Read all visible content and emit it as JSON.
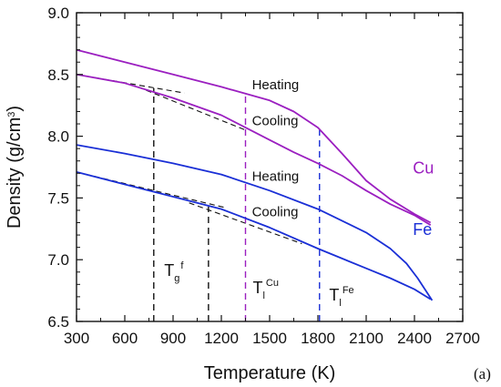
{
  "chart_data": {
    "type": "line",
    "title": "",
    "xlabel": "Temperature (K)",
    "ylabel_main": "Density (g/cm",
    "ylabel_sup": "3",
    "ylabel_close": ")",
    "xlim": [
      300,
      2700
    ],
    "ylim": [
      6.5,
      9.0
    ],
    "x_ticks": [
      300,
      600,
      900,
      1200,
      1500,
      1800,
      2100,
      2400,
      2700
    ],
    "y_ticks": [
      6.5,
      7.0,
      7.5,
      8.0,
      8.5,
      9.0
    ],
    "x_tick_labels": [
      "300",
      "600",
      "900",
      "1200",
      "1500",
      "1800",
      "2100",
      "2400",
      "2700"
    ],
    "y_tick_labels": [
      "6.5",
      "7.0",
      "7.5",
      "8.0",
      "8.5",
      "9.0"
    ],
    "grid": false,
    "colors": {
      "cu": "#9b1fc0",
      "fe": "#1a2fd6",
      "guide": "#111111"
    },
    "series": [
      {
        "key": "cu_heating",
        "color": "#9b1fc0",
        "x": [
          300,
          600,
          900,
          1200,
          1500,
          1650,
          1800,
          1950,
          2100,
          2250,
          2400,
          2500
        ],
        "y": [
          8.7,
          8.6,
          8.5,
          8.4,
          8.29,
          8.2,
          8.07,
          7.86,
          7.64,
          7.49,
          7.37,
          7.3
        ]
      },
      {
        "key": "cu_cooling",
        "color": "#9b1fc0",
        "x": [
          300,
          600,
          900,
          1200,
          1350,
          1500,
          1650,
          1800,
          1950,
          2100,
          2250,
          2400,
          2500
        ],
        "y": [
          8.5,
          8.43,
          8.31,
          8.17,
          8.07,
          7.97,
          7.87,
          7.78,
          7.68,
          7.56,
          7.45,
          7.36,
          7.28
        ]
      },
      {
        "key": "fe_heating",
        "color": "#1a2fd6",
        "x": [
          300,
          600,
          900,
          1200,
          1500,
          1800,
          2100,
          2250,
          2350,
          2420,
          2470,
          2510
        ],
        "y": [
          7.93,
          7.86,
          7.78,
          7.69,
          7.56,
          7.41,
          7.22,
          7.09,
          6.97,
          6.85,
          6.75,
          6.67
        ]
      },
      {
        "key": "fe_cooling",
        "color": "#1a2fd6",
        "x": [
          300,
          600,
          900,
          1200,
          1500,
          1800,
          2100,
          2250,
          2400,
          2500
        ],
        "y": [
          7.71,
          7.61,
          7.51,
          7.41,
          7.26,
          7.09,
          6.93,
          6.85,
          6.76,
          6.68
        ]
      }
    ],
    "tangent_lines": [
      {
        "key": "cu_glass_tangent",
        "x": [
          300,
          970
        ],
        "y": [
          8.5,
          8.35
        ]
      },
      {
        "key": "cu_liquid_tangent",
        "x": [
          680,
          1350
        ],
        "y": [
          8.4,
          8.05
        ]
      },
      {
        "key": "fe_glass_tangent",
        "x": [
          300,
          1230
        ],
        "y": [
          7.71,
          7.42
        ]
      },
      {
        "key": "fe_liquid_tangent",
        "x": [
          1000,
          1700
        ],
        "y": [
          7.46,
          7.13
        ]
      }
    ],
    "vertical_markers": [
      {
        "key": "tg_cu",
        "x": 780,
        "y_from": 6.5,
        "y_to": 8.39,
        "color": "#111111"
      },
      {
        "key": "tg_fe",
        "x": 1120,
        "y_from": 6.5,
        "y_to": 7.43,
        "color": "#111111"
      },
      {
        "key": "tl_cu",
        "x": 1350,
        "y_from": 6.5,
        "y_to": 8.35,
        "color": "#9b1fc0"
      },
      {
        "key": "tl_fe",
        "x": 1810,
        "y_from": 6.5,
        "y_to": 8.05,
        "color": "#1a2fd6"
      }
    ],
    "curve_labels": [
      {
        "key": "cu_heating_label",
        "text": "Heating",
        "x": 1390,
        "y": 8.38
      },
      {
        "key": "cu_cooling_label",
        "text": "Cooling",
        "x": 1390,
        "y": 8.09
      },
      {
        "key": "fe_heating_label",
        "text": "Heating",
        "x": 1390,
        "y": 7.64
      },
      {
        "key": "fe_cooling_label",
        "text": "Cooling",
        "x": 1390,
        "y": 7.35
      }
    ],
    "series_tags": [
      {
        "key": "cu_tag",
        "text": "Cu",
        "x": 2390,
        "y": 7.7,
        "color": "#9b1fc0"
      },
      {
        "key": "fe_tag",
        "text": "Fe",
        "x": 2390,
        "y": 7.2,
        "color": "#1a2fd6"
      }
    ],
    "temperature_labels": [
      {
        "key": "tg_label",
        "main": "T",
        "sub": "g",
        "sup": "f",
        "x": 845,
        "y": 6.87
      },
      {
        "key": "tl_cu_label",
        "main": "T",
        "sub": "l",
        "sup": "Cu",
        "x": 1395,
        "y": 6.73
      },
      {
        "key": "tl_fe_label",
        "main": "T",
        "sub": "l",
        "sup": "Fe",
        "x": 1870,
        "y": 6.67
      }
    ],
    "panel_label": "(a)"
  }
}
